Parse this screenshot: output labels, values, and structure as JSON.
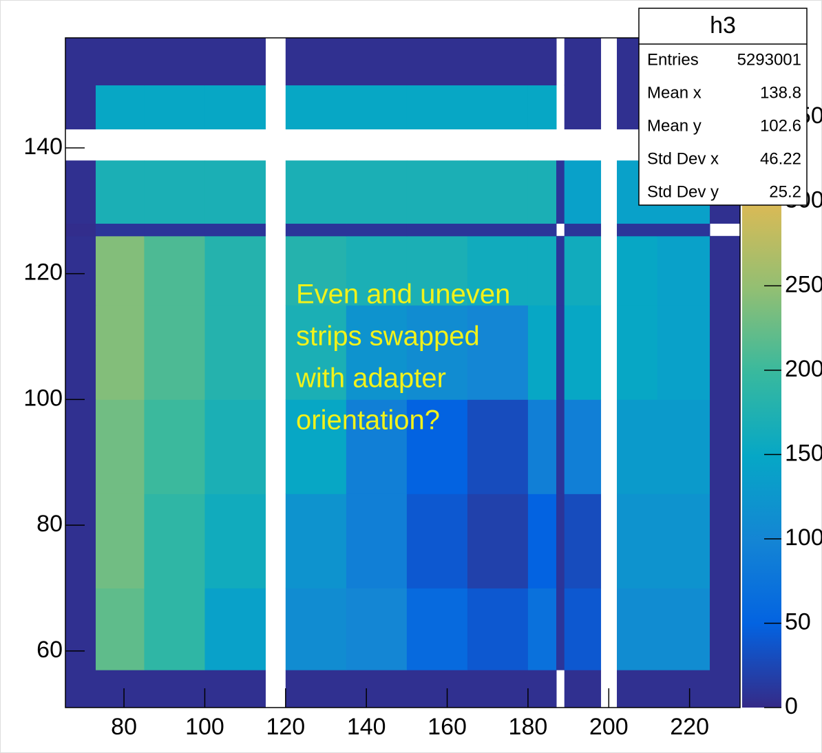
{
  "chart_data": {
    "type": "heatmap",
    "xbins": [
      65.5,
      73,
      85,
      100,
      115,
      120,
      135,
      150,
      165,
      180,
      187,
      189,
      198,
      202,
      212,
      225,
      232.5
    ],
    "ybins": [
      51,
      57,
      70,
      85,
      100,
      115,
      126,
      128,
      138,
      143,
      150,
      157.5
    ],
    "z": [
      [
        5,
        5,
        5,
        5,
        null,
        5,
        5,
        5,
        5,
        5,
        null,
        5,
        null,
        5,
        5,
        5
      ],
      [
        5,
        220,
        190,
        140,
        null,
        110,
        100,
        60,
        40,
        70,
        10,
        40,
        null,
        110,
        110,
        5
      ],
      [
        5,
        230,
        190,
        160,
        null,
        120,
        90,
        40,
        20,
        50,
        10,
        30,
        null,
        120,
        120,
        5
      ],
      [
        5,
        230,
        200,
        170,
        null,
        150,
        90,
        50,
        30,
        90,
        10,
        90,
        null,
        130,
        130,
        5
      ],
      [
        5,
        240,
        210,
        180,
        null,
        170,
        120,
        110,
        100,
        150,
        10,
        150,
        null,
        150,
        140,
        5
      ],
      [
        5,
        240,
        210,
        180,
        null,
        180,
        170,
        170,
        160,
        160,
        10,
        160,
        null,
        150,
        140,
        5
      ],
      [
        3,
        10,
        10,
        10,
        null,
        10,
        10,
        10,
        10,
        10,
        null,
        10,
        null,
        10,
        10,
        null
      ],
      [
        5,
        170,
        170,
        170,
        null,
        170,
        170,
        170,
        170,
        170,
        10,
        140,
        null,
        140,
        140,
        5
      ],
      [
        null,
        null,
        null,
        null,
        null,
        null,
        null,
        null,
        null,
        null,
        null,
        null,
        null,
        null,
        null,
        null
      ],
      [
        5,
        150,
        150,
        150,
        null,
        150,
        150,
        150,
        150,
        150,
        null,
        5,
        null,
        5,
        5,
        5
      ],
      [
        5,
        5,
        5,
        5,
        null,
        5,
        5,
        5,
        5,
        5,
        null,
        5,
        null,
        5,
        5,
        5
      ]
    ],
    "xlim": [
      65.5,
      232.5
    ],
    "ylim": [
      51,
      157.5
    ],
    "zlim": [
      0,
      397
    ],
    "xticks": [
      80,
      100,
      120,
      140,
      160,
      180,
      200,
      220
    ],
    "yticks": [
      60,
      80,
      100,
      120,
      140
    ],
    "zticks": [
      0,
      50,
      100,
      150,
      200,
      250,
      300,
      350
    ],
    "colorscale": [
      "#352a87",
      "#0363e1",
      "#1485d4",
      "#06a7c6",
      "#38b99e",
      "#92bf73",
      "#d9ba56",
      "#fcce2e",
      "#f9fb0e"
    ],
    "stats": {
      "title": "h3",
      "rows": [
        {
          "label": "Entries",
          "value": "5293001"
        },
        {
          "label": "Mean x",
          "value": "138.8"
        },
        {
          "label": "Mean y",
          "value": "102.6"
        },
        {
          "label": "Std Dev x",
          "value": "46.22"
        },
        {
          "label": "Std Dev y",
          "value": "25.2"
        }
      ]
    },
    "annotation": [
      "Even and uneven",
      "strips swapped",
      "with adapter",
      "orientation?"
    ]
  }
}
